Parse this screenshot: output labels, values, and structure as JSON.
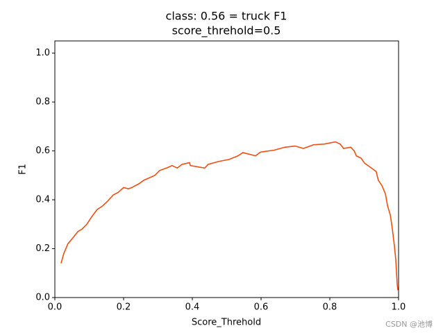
{
  "chart_data": {
    "type": "line",
    "title": "class: 0.56 = truck F1",
    "subtitle": "score_threhold=0.5",
    "x_label": "Score_Threhold",
    "y_label": "F1",
    "watermark": "CSDN @池博",
    "xlim": [
      0,
      1
    ],
    "ylim": [
      0,
      1.05
    ],
    "xticks": [
      {
        "value": 0,
        "label": "0.0"
      },
      0.2,
      0.4,
      0.6,
      0.8,
      {
        "value": 1,
        "label": "1.0"
      }
    ],
    "yticks": [
      {
        "value": 0,
        "label": "0.0"
      },
      0.2,
      0.4,
      0.6,
      0.8,
      {
        "value": 1,
        "label": "1.0"
      }
    ],
    "series": [
      {
        "color": "#f04e0e",
        "x": [
          0.018,
          0.026,
          0.038,
          0.053,
          0.067,
          0.079,
          0.093,
          0.107,
          0.123,
          0.139,
          0.154,
          0.17,
          0.184,
          0.2,
          0.214,
          0.224,
          0.244,
          0.259,
          0.275,
          0.291,
          0.305,
          0.325,
          0.341,
          0.356,
          0.37,
          0.386,
          0.392,
          0.394,
          0.436,
          0.446,
          0.477,
          0.507,
          0.533,
          0.547,
          0.584,
          0.598,
          0.638,
          0.669,
          0.699,
          0.723,
          0.743,
          0.752,
          0.784,
          0.816,
          0.83,
          0.84,
          0.861,
          0.871,
          0.877,
          0.891,
          0.901,
          0.921,
          0.935,
          0.941,
          0.952,
          0.962,
          0.968,
          0.976,
          0.982,
          0.988,
          0.992,
          0.996,
          0.998
        ],
        "values": [
          0.14,
          0.18,
          0.22,
          0.245,
          0.27,
          0.28,
          0.3,
          0.33,
          0.36,
          0.375,
          0.395,
          0.42,
          0.43,
          0.45,
          0.445,
          0.45,
          0.465,
          0.48,
          0.49,
          0.5,
          0.52,
          0.53,
          0.54,
          0.53,
          0.545,
          0.55,
          0.552,
          0.54,
          0.53,
          0.545,
          0.557,
          0.565,
          0.58,
          0.593,
          0.58,
          0.595,
          0.603,
          0.615,
          0.62,
          0.61,
          0.62,
          0.625,
          0.628,
          0.637,
          0.628,
          0.61,
          0.615,
          0.6,
          0.58,
          0.57,
          0.55,
          0.53,
          0.515,
          0.48,
          0.457,
          0.423,
          0.375,
          0.338,
          0.28,
          0.21,
          0.153,
          0.054,
          0.03
        ]
      }
    ]
  }
}
